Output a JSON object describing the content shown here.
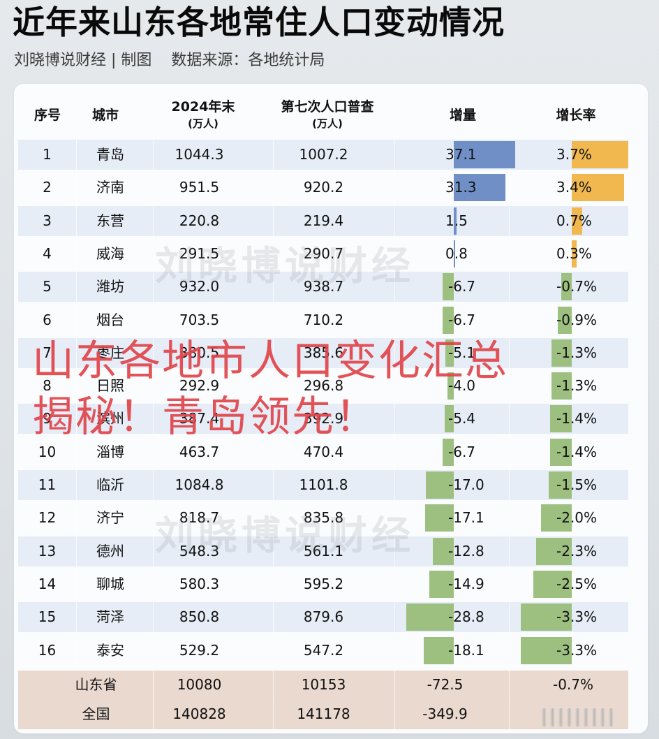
{
  "header": {
    "title": "近年来山东各地常住人口变动情况",
    "subtitle": "刘晓博说财经 | 制图    数据来源：各地统计局"
  },
  "table": {
    "columns": [
      {
        "label": "序号",
        "unit": ""
      },
      {
        "label": "城市",
        "unit": ""
      },
      {
        "label": "2024年末",
        "unit": "(万人)"
      },
      {
        "label": "第七次人口普查",
        "unit": "(万人)"
      },
      {
        "label": "增量",
        "unit": ""
      },
      {
        "label": "增长率",
        "unit": ""
      }
    ],
    "rows": [
      {
        "idx": "1",
        "city": "青岛",
        "v2024": "1044.3",
        "v7th": "1007.2",
        "inc": "37.1",
        "rate": "3.7%"
      },
      {
        "idx": "2",
        "city": "济南",
        "v2024": "951.5",
        "v7th": "920.2",
        "inc": "31.3",
        "rate": "3.4%"
      },
      {
        "idx": "3",
        "city": "东营",
        "v2024": "220.8",
        "v7th": "219.4",
        "inc": "1.5",
        "rate": "0.7%"
      },
      {
        "idx": "4",
        "city": "威海",
        "v2024": "291.5",
        "v7th": "290.7",
        "inc": "0.8",
        "rate": "0.3%"
      },
      {
        "idx": "5",
        "city": "潍坊",
        "v2024": "932.0",
        "v7th": "938.7",
        "inc": "-6.7",
        "rate": "-0.7%"
      },
      {
        "idx": "6",
        "city": "烟台",
        "v2024": "703.5",
        "v7th": "710.2",
        "inc": "-6.7",
        "rate": "-0.9%"
      },
      {
        "idx": "7",
        "city": "枣庄",
        "v2024": "380.5",
        "v7th": "385.6",
        "inc": "-5.1",
        "rate": "-1.3%"
      },
      {
        "idx": "8",
        "city": "日照",
        "v2024": "292.9",
        "v7th": "296.8",
        "inc": "-4.0",
        "rate": "-1.3%"
      },
      {
        "idx": "9",
        "city": "滨州",
        "v2024": "387.4",
        "v7th": "392.9",
        "inc": "-5.4",
        "rate": "-1.4%"
      },
      {
        "idx": "10",
        "city": "淄博",
        "v2024": "463.7",
        "v7th": "470.4",
        "inc": "-6.7",
        "rate": "-1.4%"
      },
      {
        "idx": "11",
        "city": "临沂",
        "v2024": "1084.8",
        "v7th": "1101.8",
        "inc": "-17.0",
        "rate": "-1.5%"
      },
      {
        "idx": "12",
        "city": "济宁",
        "v2024": "818.7",
        "v7th": "835.8",
        "inc": "-17.1",
        "rate": "-2.0%"
      },
      {
        "idx": "13",
        "city": "德州",
        "v2024": "548.3",
        "v7th": "561.1",
        "inc": "-12.8",
        "rate": "-2.3%"
      },
      {
        "idx": "14",
        "city": "聊城",
        "v2024": "580.3",
        "v7th": "595.2",
        "inc": "-14.9",
        "rate": "-2.5%"
      },
      {
        "idx": "15",
        "city": "菏泽",
        "v2024": "850.8",
        "v7th": "879.6",
        "inc": "-28.8",
        "rate": "-3.3%"
      },
      {
        "idx": "16",
        "city": "泰安",
        "v2024": "529.2",
        "v7th": "547.2",
        "inc": "-18.1",
        "rate": "-3.3%"
      }
    ],
    "summary": [
      {
        "label": "山东省",
        "v2024": "10080",
        "v7th": "10153",
        "inc": "-72.5",
        "rate": "-0.7%"
      },
      {
        "label": "全国",
        "v2024": "140828",
        "v7th": "141178",
        "inc": "-349.9",
        "rate": ""
      }
    ]
  },
  "watermark": "刘晓博说财经",
  "overlay": {
    "line1": "山东各地市人口变化汇总",
    "line2": "揭秘！青岛领先！"
  },
  "colors": {
    "positive_increment_bar": "#6f8fc6",
    "positive_rate_bar": "#f0b84f",
    "negative_bar": "#9dbf80",
    "alt_row": "#e6edf7",
    "summary_row": "#ead9cf",
    "overlay_text": "#e0454a"
  },
  "chart_data": {
    "type": "table",
    "title": "近年来山东各地常住人口变动情况",
    "subtitle": "刘晓博说财经 | 制图    数据来源：各地统计局",
    "columns": [
      "序号",
      "城市",
      "2024年末(万人)",
      "第七次人口普查(万人)",
      "增量",
      "增长率"
    ],
    "categories": [
      "青岛",
      "济南",
      "东营",
      "威海",
      "潍坊",
      "烟台",
      "枣庄",
      "日照",
      "滨州",
      "淄博",
      "临沂",
      "济宁",
      "德州",
      "聊城",
      "菏泽",
      "泰安"
    ],
    "series": [
      {
        "name": "2024年末(万人)",
        "values": [
          1044.3,
          951.5,
          220.8,
          291.5,
          932.0,
          703.5,
          380.5,
          292.9,
          387.4,
          463.7,
          1084.8,
          818.7,
          548.3,
          580.3,
          850.8,
          529.2
        ]
      },
      {
        "name": "第七次人口普查(万人)",
        "values": [
          1007.2,
          920.2,
          219.4,
          290.7,
          938.7,
          710.2,
          385.6,
          296.8,
          392.9,
          470.4,
          1101.8,
          835.8,
          561.1,
          595.2,
          879.6,
          547.2
        ]
      },
      {
        "name": "增量",
        "values": [
          37.1,
          31.3,
          1.5,
          0.8,
          -6.7,
          -6.7,
          -5.1,
          -4.0,
          -5.4,
          -6.7,
          -17.0,
          -17.1,
          -12.8,
          -14.9,
          -28.8,
          -18.1
        ]
      },
      {
        "name": "增长率(%)",
        "values": [
          3.7,
          3.4,
          0.7,
          0.3,
          -0.7,
          -0.9,
          -1.3,
          -1.3,
          -1.4,
          -1.4,
          -1.5,
          -2.0,
          -2.3,
          -2.5,
          -3.3,
          -3.3
        ]
      }
    ],
    "totals": [
      {
        "name": "山东省",
        "2024年末": 10080,
        "第七次人口普查": 10153,
        "增量": -72.5,
        "增长率": -0.7
      },
      {
        "name": "全国",
        "2024年末": 140828,
        "第七次人口普查": 141178,
        "增量": -349.9
      }
    ]
  }
}
